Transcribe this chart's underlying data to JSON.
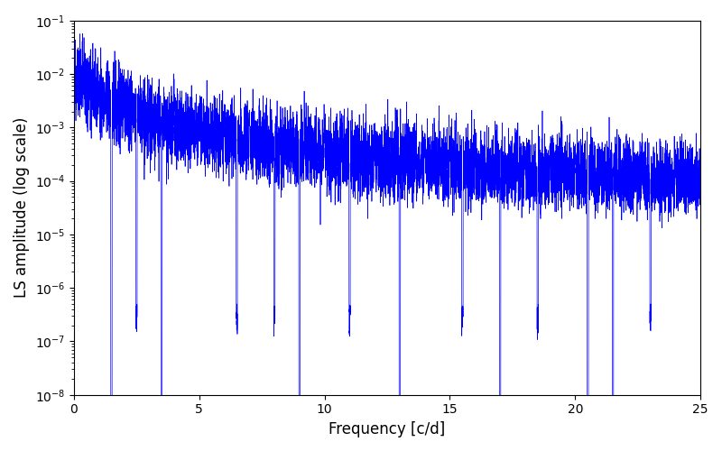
{
  "title": "",
  "xlabel": "Frequency [c/d]",
  "ylabel": "LS amplitude (log scale)",
  "xlim": [
    0,
    25
  ],
  "ylim": [
    1e-09,
    0.1
  ],
  "ylim_display": [
    1e-08,
    0.03
  ],
  "line_color": "#0000ff",
  "line_width": 0.5,
  "background_color": "#ffffff",
  "freq_min": 0.0,
  "freq_max": 25.0,
  "n_points": 8000,
  "seed": 137
}
